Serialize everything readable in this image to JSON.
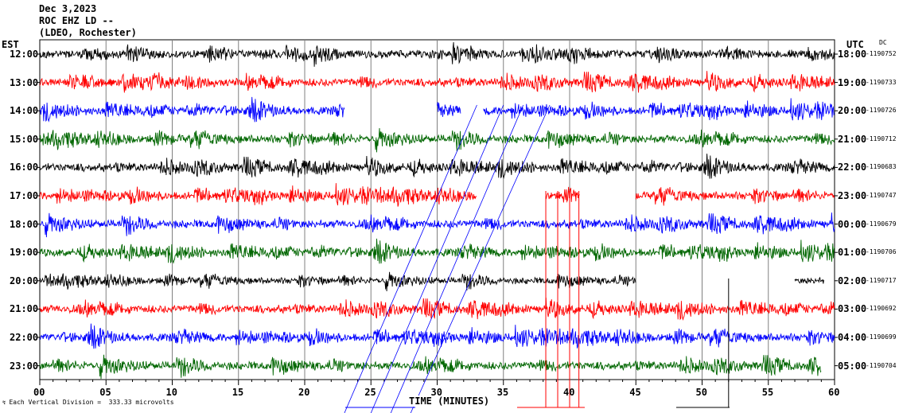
{
  "header": {
    "date": "Dec 3,2023",
    "station": "ROC EHZ LD --",
    "network": "(LDEO, Rochester)"
  },
  "left_tz": "EST",
  "right_tz": "UTC",
  "right_unit": "DC",
  "footer_note": "Each Vertical Division =  333.33 microvolts",
  "colors": {
    "black": "#000000",
    "red": "#ff0000",
    "blue": "#0000ff",
    "green": "#006600",
    "grid": "#808080"
  },
  "chart_data": {
    "type": "line",
    "title": "",
    "xlabel": "TIME (MINUTES)",
    "ylabel": "",
    "xlim": [
      0,
      60
    ],
    "x_ticks": [
      "00",
      "05",
      "10",
      "15",
      "20",
      "25",
      "30",
      "35",
      "40",
      "45",
      "50",
      "55",
      "60"
    ],
    "grid": true,
    "rows": [
      {
        "local": "12:00",
        "utc": "18:00",
        "dc": "-1190752",
        "color": "black",
        "amplitude": 1.0,
        "segments": [
          [
            0,
            60
          ]
        ]
      },
      {
        "local": "13:00",
        "utc": "19:00",
        "dc": "-1190733",
        "color": "red",
        "amplitude": 1.0,
        "segments": [
          [
            0,
            60
          ]
        ]
      },
      {
        "local": "14:00",
        "utc": "20:00",
        "dc": "-1190726",
        "color": "blue",
        "amplitude": 1.0,
        "segments": [
          [
            0,
            23
          ],
          [
            30,
            31.8
          ],
          [
            33.5,
            60
          ]
        ]
      },
      {
        "local": "15:00",
        "utc": "21:00",
        "dc": "-1190712",
        "color": "green",
        "amplitude": 1.0,
        "segments": [
          [
            0,
            60
          ]
        ]
      },
      {
        "local": "16:00",
        "utc": "22:00",
        "dc": "-1190683",
        "color": "black",
        "amplitude": 1.0,
        "segments": [
          [
            0,
            60
          ]
        ]
      },
      {
        "local": "17:00",
        "utc": "23:00",
        "dc": "-1190747",
        "color": "red",
        "amplitude": 1.0,
        "segments": [
          [
            0,
            33
          ],
          [
            38.2,
            40.8
          ],
          [
            45,
            60
          ]
        ]
      },
      {
        "local": "18:00",
        "utc": "00:00",
        "dc": "-1190679",
        "color": "blue",
        "amplitude": 1.0,
        "segments": [
          [
            0,
            60
          ]
        ]
      },
      {
        "local": "19:00",
        "utc": "01:00",
        "dc": "-1190706",
        "color": "green",
        "amplitude": 1.0,
        "segments": [
          [
            0,
            60
          ]
        ]
      },
      {
        "local": "20:00",
        "utc": "02:00",
        "dc": "-1190717",
        "color": "black",
        "amplitude": 0.8,
        "segments": [
          [
            0,
            45
          ],
          [
            57,
            59.2
          ]
        ]
      },
      {
        "local": "21:00",
        "utc": "03:00",
        "dc": "-1190692",
        "color": "red",
        "amplitude": 1.0,
        "segments": [
          [
            0,
            60
          ]
        ]
      },
      {
        "local": "22:00",
        "utc": "04:00",
        "dc": "-1190699",
        "color": "blue",
        "amplitude": 1.0,
        "segments": [
          [
            0,
            60
          ]
        ]
      },
      {
        "local": "23:00",
        "utc": "05:00",
        "dc": "-1190704",
        "color": "green",
        "amplitude": 1.0,
        "segments": [
          [
            0,
            59
          ]
        ]
      }
    ]
  }
}
